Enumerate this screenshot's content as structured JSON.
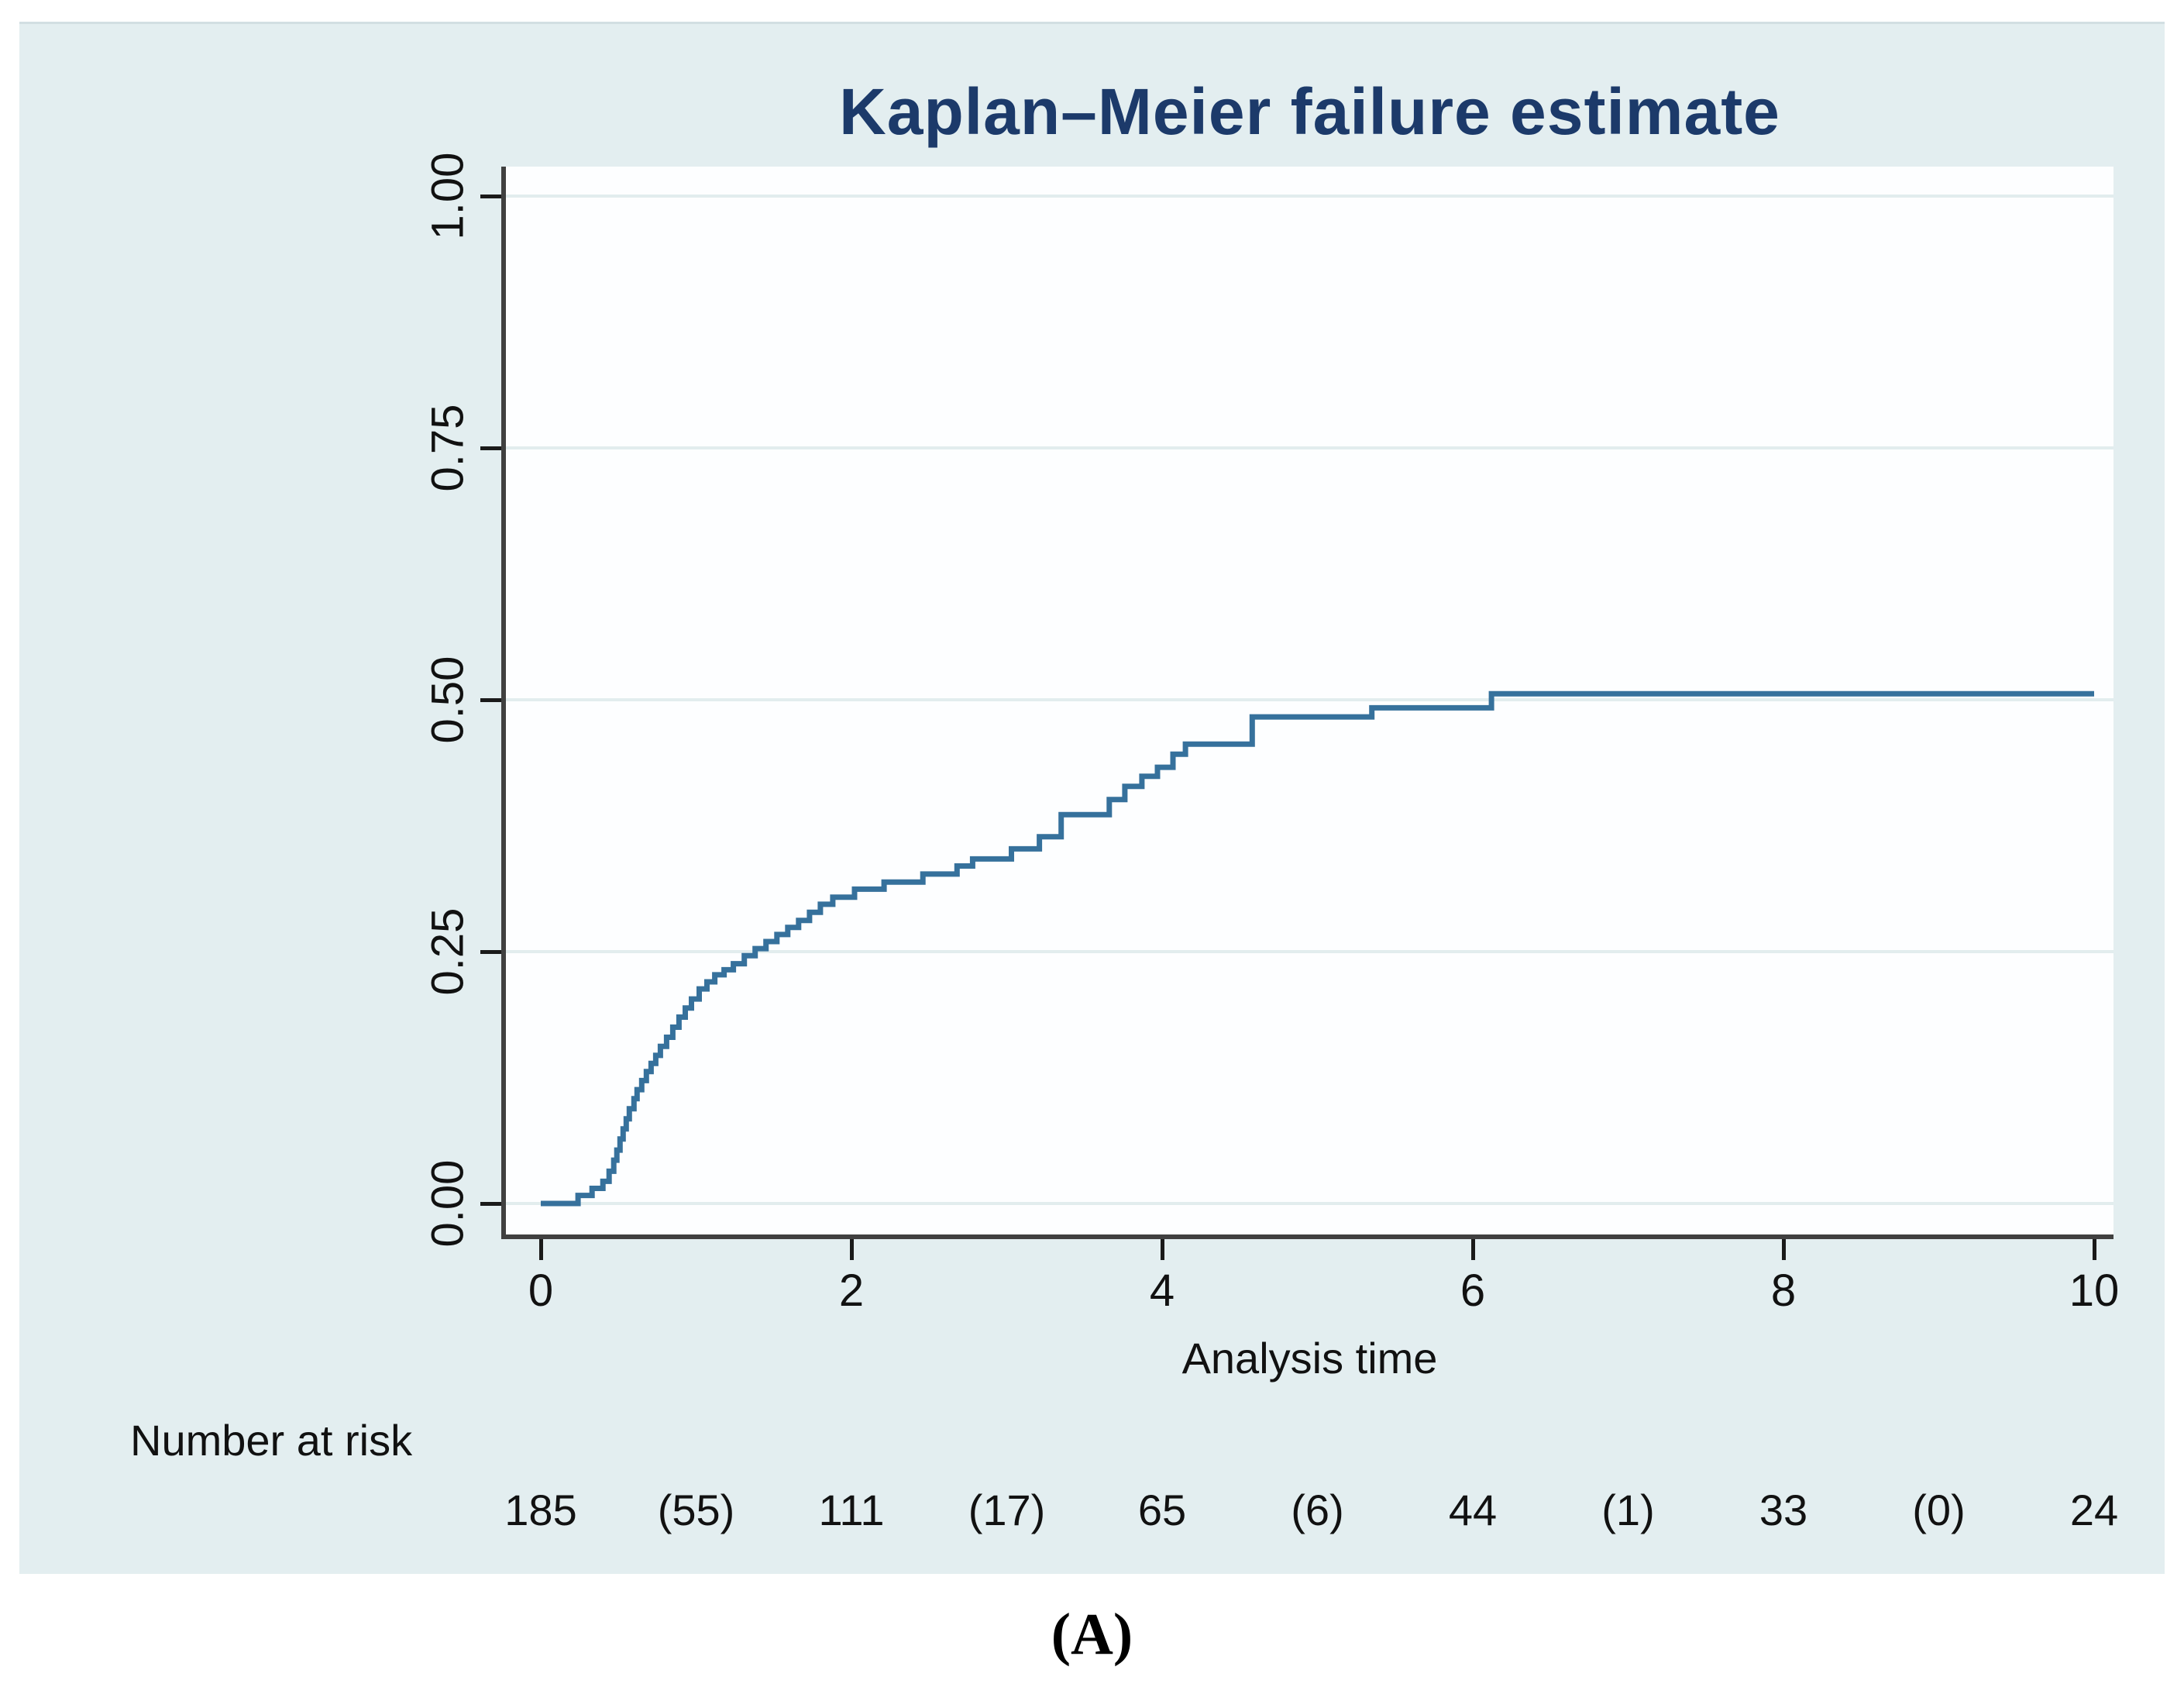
{
  "figure": {
    "title": "Kaplan–Meier failure estimate",
    "xlabel": "Analysis time",
    "risk_label": "Number at risk",
    "caption": "(A)",
    "colors": {
      "panel_bg": "#e3eef0",
      "plot_bg": "#fdfeff",
      "title": "#1c3a6a",
      "curve": "#36719c",
      "grid": "#e2edee",
      "axis": "#404040",
      "text": "#111111"
    }
  },
  "chart_data": {
    "type": "line",
    "subtype": "kaplan-meier-step",
    "title": "Kaplan–Meier failure estimate",
    "xlabel": "Analysis time",
    "ylabel": "",
    "xlim": [
      0,
      10
    ],
    "ylim": [
      0,
      1
    ],
    "xticks": [
      0,
      2,
      4,
      6,
      8,
      10
    ],
    "ytick_labels": [
      "0.00",
      "0.25",
      "0.50",
      "0.75",
      "1.00"
    ],
    "ytick_values": [
      0,
      0.25,
      0.5,
      0.75,
      1.0
    ],
    "grid": "horizontal",
    "legend": "none",
    "series": [
      {
        "name": "failure estimate",
        "step": "after",
        "points": [
          [
            0.0,
            0.0
          ],
          [
            0.24,
            0.008
          ],
          [
            0.33,
            0.015
          ],
          [
            0.4,
            0.022
          ],
          [
            0.44,
            0.032
          ],
          [
            0.47,
            0.043
          ],
          [
            0.49,
            0.053
          ],
          [
            0.51,
            0.064
          ],
          [
            0.53,
            0.074
          ],
          [
            0.55,
            0.084
          ],
          [
            0.57,
            0.094
          ],
          [
            0.6,
            0.104
          ],
          [
            0.62,
            0.113
          ],
          [
            0.65,
            0.122
          ],
          [
            0.68,
            0.131
          ],
          [
            0.71,
            0.139
          ],
          [
            0.74,
            0.147
          ],
          [
            0.77,
            0.156
          ],
          [
            0.81,
            0.165
          ],
          [
            0.85,
            0.175
          ],
          [
            0.89,
            0.185
          ],
          [
            0.93,
            0.194
          ],
          [
            0.97,
            0.203
          ],
          [
            1.02,
            0.213
          ],
          [
            1.07,
            0.22
          ],
          [
            1.12,
            0.227
          ],
          [
            1.18,
            0.232
          ],
          [
            1.24,
            0.238
          ],
          [
            1.31,
            0.246
          ],
          [
            1.38,
            0.253
          ],
          [
            1.45,
            0.26
          ],
          [
            1.52,
            0.267
          ],
          [
            1.59,
            0.274
          ],
          [
            1.66,
            0.281
          ],
          [
            1.73,
            0.289
          ],
          [
            1.8,
            0.297
          ],
          [
            1.88,
            0.304
          ],
          [
            2.02,
            0.312
          ],
          [
            2.21,
            0.319
          ],
          [
            2.46,
            0.327
          ],
          [
            2.68,
            0.335
          ],
          [
            2.78,
            0.342
          ],
          [
            3.03,
            0.352
          ],
          [
            3.21,
            0.364
          ],
          [
            3.35,
            0.386
          ],
          [
            3.66,
            0.401
          ],
          [
            3.76,
            0.414
          ],
          [
            3.87,
            0.424
          ],
          [
            3.97,
            0.433
          ],
          [
            4.07,
            0.446
          ],
          [
            4.15,
            0.456
          ],
          [
            4.58,
            0.483
          ],
          [
            5.35,
            0.492
          ],
          [
            6.12,
            0.506
          ],
          [
            10.0,
            0.506
          ]
        ]
      }
    ],
    "number_at_risk": {
      "times": [
        0,
        1,
        2,
        3,
        4,
        5,
        6,
        7,
        8,
        9,
        10
      ],
      "values": [
        "185",
        "(55)",
        "111",
        "(17)",
        "65",
        "(6)",
        "44",
        "(1)",
        "33",
        "(0)",
        "24"
      ]
    }
  }
}
